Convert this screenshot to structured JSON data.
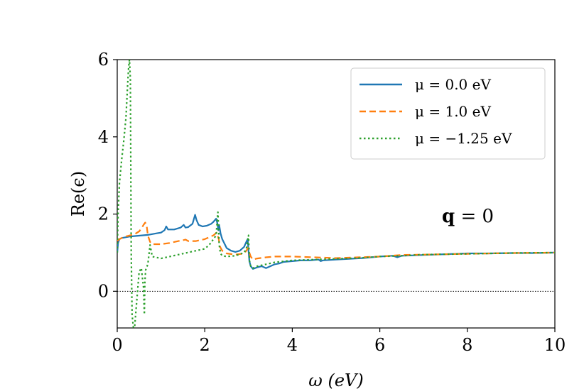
{
  "chart_data": {
    "type": "line",
    "xlabel": "ω (eV)",
    "ylabel": "Re(ϵ)",
    "xlim": [
      0,
      10
    ],
    "ylim": [
      -0.95,
      6
    ],
    "xticks": [
      0,
      2,
      4,
      6,
      8,
      10
    ],
    "yticks": [
      0,
      2,
      4,
      6
    ],
    "xtick_labels": [
      "0",
      "2",
      "4",
      "6",
      "8",
      "10"
    ],
    "ytick_labels": [
      "0",
      "2",
      "4",
      "6"
    ],
    "grid": false,
    "legend_position": "top-right",
    "annotation": {
      "bold": "q",
      "rest": " = 0"
    },
    "reference_line": {
      "y": 0,
      "style": "dotted",
      "color": "#000000"
    },
    "series": [
      {
        "name": "μ = 0.0 eV",
        "color": "#1f77b4",
        "dash": "solid",
        "x": [
          0.0,
          0.02,
          0.05,
          0.1,
          0.3,
          0.5,
          0.7,
          0.9,
          1.0,
          1.08,
          1.12,
          1.16,
          1.3,
          1.45,
          1.52,
          1.56,
          1.62,
          1.72,
          1.78,
          1.81,
          1.86,
          1.95,
          2.05,
          2.15,
          2.2,
          2.26,
          2.29,
          2.31,
          2.33,
          2.36,
          2.4,
          2.5,
          2.6,
          2.7,
          2.8,
          2.9,
          2.95,
          2.98,
          3.0,
          3.02,
          3.05,
          3.1,
          3.2,
          3.3,
          3.4,
          3.5,
          3.6,
          3.7,
          3.8,
          4.0,
          4.2,
          4.4,
          4.6,
          4.65,
          4.7,
          5.0,
          5.3,
          5.6,
          6.0,
          6.3,
          6.4,
          6.5,
          7.0,
          7.5,
          8.0,
          8.5,
          9.0,
          9.5,
          10.0
        ],
        "y": [
          1.0,
          1.25,
          1.35,
          1.38,
          1.42,
          1.44,
          1.46,
          1.5,
          1.52,
          1.58,
          1.68,
          1.6,
          1.6,
          1.65,
          1.72,
          1.65,
          1.66,
          1.75,
          1.98,
          1.85,
          1.72,
          1.68,
          1.7,
          1.75,
          1.8,
          1.88,
          1.75,
          1.58,
          1.72,
          1.5,
          1.35,
          1.12,
          1.05,
          1.02,
          1.05,
          1.15,
          1.28,
          1.35,
          1.05,
          0.78,
          0.65,
          0.58,
          0.62,
          0.65,
          0.6,
          0.65,
          0.7,
          0.72,
          0.76,
          0.78,
          0.8,
          0.8,
          0.82,
          0.78,
          0.8,
          0.82,
          0.84,
          0.86,
          0.9,
          0.92,
          0.88,
          0.92,
          0.94,
          0.96,
          0.98,
          0.98,
          0.99,
          0.99,
          1.0
        ]
      },
      {
        "name": "μ = 1.0 eV",
        "color": "#ff7f0e",
        "dash": "dashed",
        "x": [
          0.0,
          0.02,
          0.05,
          0.1,
          0.2,
          0.3,
          0.4,
          0.5,
          0.55,
          0.6,
          0.64,
          0.67,
          0.7,
          0.75,
          0.8,
          1.0,
          1.2,
          1.4,
          1.5,
          1.56,
          1.62,
          1.8,
          2.0,
          2.1,
          2.2,
          2.27,
          2.3,
          2.32,
          2.35,
          2.4,
          2.5,
          2.7,
          2.9,
          2.95,
          2.99,
          3.02,
          3.05,
          3.1,
          3.2,
          3.4,
          3.6,
          4.0,
          4.5,
          5.0,
          5.5,
          6.0,
          6.5,
          7.0,
          8.0,
          9.0,
          10.0
        ],
        "y": [
          1.3,
          1.32,
          1.35,
          1.38,
          1.42,
          1.45,
          1.48,
          1.55,
          1.62,
          1.72,
          1.78,
          1.72,
          1.45,
          1.28,
          1.22,
          1.22,
          1.25,
          1.3,
          1.32,
          1.34,
          1.3,
          1.3,
          1.35,
          1.4,
          1.45,
          1.52,
          1.42,
          1.35,
          1.15,
          1.05,
          0.98,
          0.95,
          0.98,
          1.05,
          1.12,
          1.0,
          0.9,
          0.82,
          0.85,
          0.88,
          0.9,
          0.9,
          0.88,
          0.86,
          0.88,
          0.9,
          0.94,
          0.95,
          0.97,
          0.99,
          1.0
        ]
      },
      {
        "name": "μ = −1.25 eV",
        "color": "#2ca02c",
        "dash": "dotted",
        "x": [
          0.0,
          0.02,
          0.05,
          0.1,
          0.15,
          0.2,
          0.23,
          0.26,
          0.28,
          0.3,
          0.32,
          0.34,
          0.37,
          0.4,
          0.45,
          0.5,
          0.55,
          0.6,
          0.62,
          0.63,
          0.65,
          0.7,
          0.75,
          0.8,
          1.0,
          1.2,
          1.4,
          1.6,
          1.8,
          2.0,
          2.1,
          2.2,
          2.26,
          2.3,
          2.33,
          2.36,
          2.4,
          2.5,
          2.7,
          2.9,
          2.95,
          2.98,
          3.0,
          3.02,
          3.05,
          3.1,
          3.2,
          3.4,
          3.6,
          4.0,
          4.5,
          5.0,
          5.5,
          6.0,
          6.5,
          7.0,
          8.0,
          9.0,
          10.0
        ],
        "y": [
          1.0,
          2.0,
          2.8,
          3.4,
          3.9,
          4.5,
          5.2,
          5.8,
          6.0,
          5.5,
          1.0,
          -0.6,
          -0.95,
          -0.9,
          -0.2,
          0.5,
          0.6,
          0.1,
          -0.6,
          0.2,
          0.55,
          0.7,
          1.2,
          0.9,
          0.85,
          0.9,
          0.95,
          1.0,
          1.05,
          1.1,
          1.2,
          1.35,
          1.45,
          2.05,
          1.2,
          0.98,
          0.92,
          0.9,
          0.92,
          1.0,
          1.1,
          1.3,
          1.45,
          0.8,
          0.65,
          0.6,
          0.65,
          0.7,
          0.75,
          0.8,
          0.82,
          0.84,
          0.86,
          0.9,
          0.92,
          0.95,
          0.97,
          0.99,
          1.0
        ]
      }
    ]
  }
}
